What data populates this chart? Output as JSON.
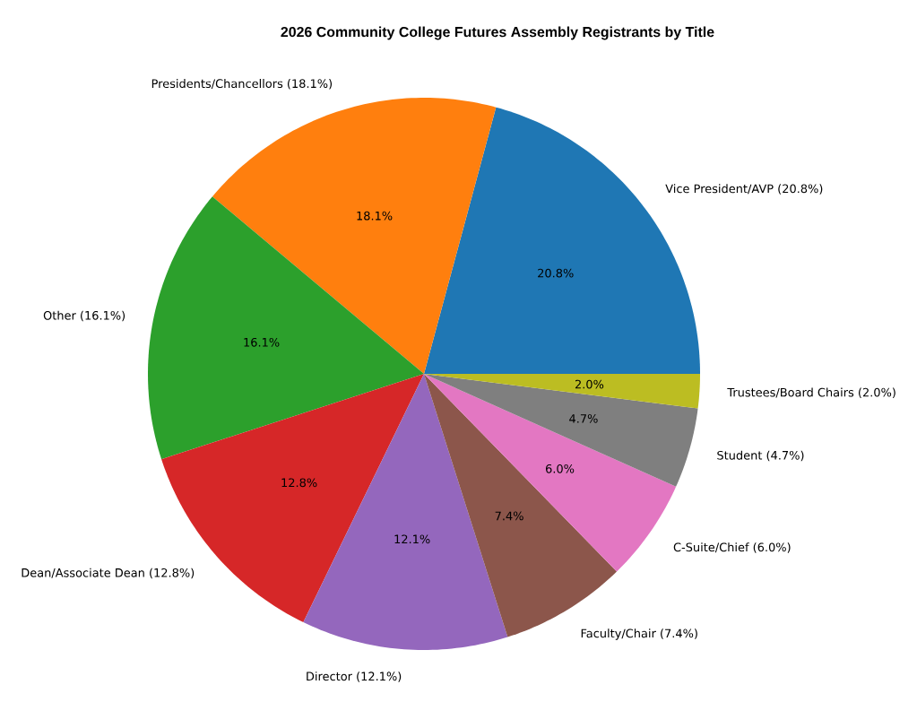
{
  "chart_data": {
    "type": "pie",
    "title": "2026 Community College Futures Assembly Registrants by Title",
    "categories": [
      "Vice President/AVP (20.8%)",
      "Presidents/Chancellors (18.1%)",
      "Other (16.1%)",
      "Dean/Associate Dean (12.8%)",
      "Director (12.1%)",
      "Faculty/Chair (7.4%)",
      "C-Suite/Chief (6.0%)",
      "Student (4.7%)",
      "Trustees/Board Chairs (2.0%)"
    ],
    "values": [
      20.8,
      18.1,
      16.1,
      12.8,
      12.1,
      7.4,
      6.0,
      4.7,
      2.0
    ],
    "value_labels": [
      "20.8%",
      "18.1%",
      "16.1%",
      "12.8%",
      "12.1%",
      "7.4%",
      "6.0%",
      "4.7%",
      "2.0%"
    ],
    "colors": [
      "#1f77b4",
      "#ff7f0e",
      "#2ca02c",
      "#d62728",
      "#9467bd",
      "#8c564b",
      "#e377c2",
      "#7f7f7f",
      "#bcbd22"
    ]
  }
}
